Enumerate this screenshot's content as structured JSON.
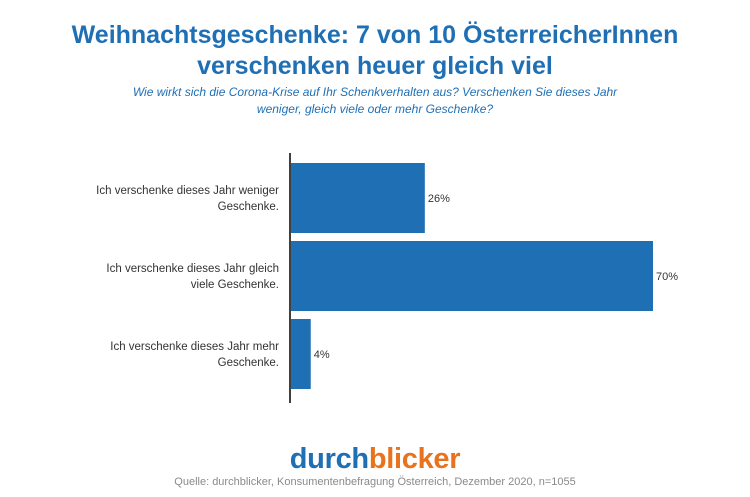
{
  "title_line1": "Weihnachtsgeschenke: 7 von 10 ÖsterreicherInnen",
  "title_line2": "verschenken heuer gleich viel",
  "subtitle_line1": "Wie wirkt sich die Corona-Krise auf Ihr Schenkverhalten aus? Verschenken Sie dieses Jahr",
  "subtitle_line2": "weniger, gleich viele oder mehr Geschenke?",
  "logo": {
    "part1": "durch",
    "part2": "blicker"
  },
  "source": "Quelle: durchblicker, Konsumentenbefragung Österreich, Dezember 2020, n=1055",
  "colors": {
    "bar": "#1f6fb5",
    "logo_accent": "#e8731c",
    "axis": "#404040"
  },
  "chart_data": {
    "type": "bar",
    "orientation": "horizontal",
    "categories": [
      [
        "Ich verschenke dieses Jahr weniger",
        "Geschenke."
      ],
      [
        "Ich verschenke dieses Jahr gleich",
        "viele Geschenke."
      ],
      [
        "Ich verschenke dieses Jahr mehr",
        "Geschenke."
      ]
    ],
    "values": [
      26,
      70,
      4
    ],
    "value_labels": [
      "26%",
      "70%",
      "4%"
    ],
    "xlim": [
      0,
      70
    ],
    "grid": false,
    "legend": "none"
  }
}
